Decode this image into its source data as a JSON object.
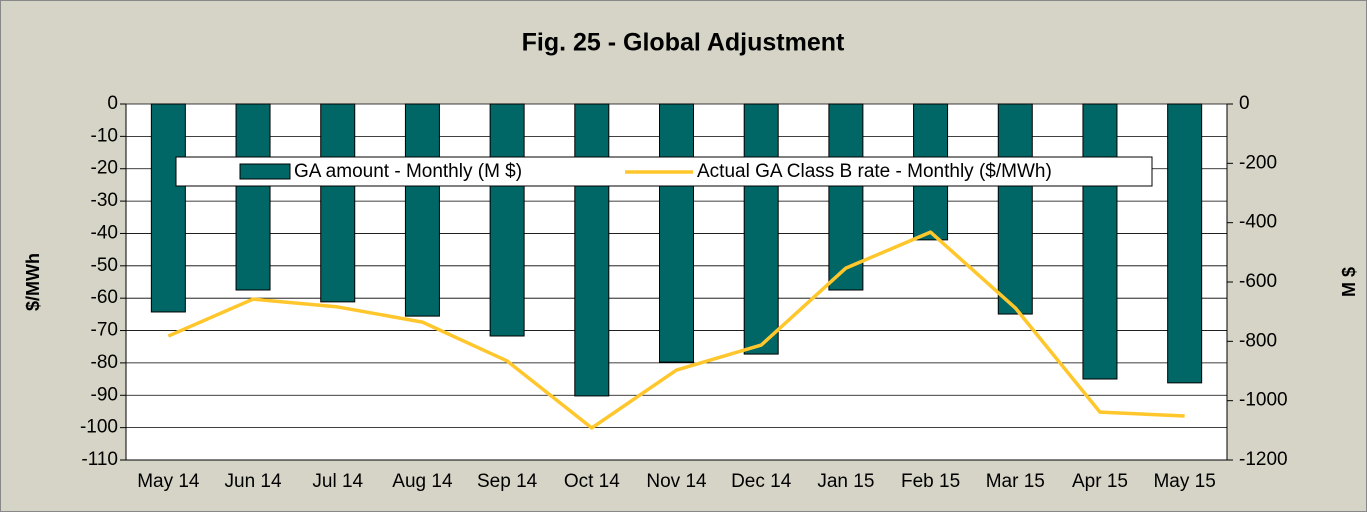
{
  "chart_data": {
    "type": "bar",
    "title": "Fig. 25 - Global Adjustment",
    "ylabel": "$/MWh",
    "y2label": "M $",
    "categories": [
      "May 14",
      "Jun 14",
      "Jul 14",
      "Aug 14",
      "Sep 14",
      "Oct 14",
      "Nov 14",
      "Dec 14",
      "Jan 15",
      "Feb 15",
      "Mar 15",
      "Apr 15",
      "May 15"
    ],
    "series": [
      {
        "name": "GA amount - Monthly (M $)",
        "type": "bar",
        "axis": "y2",
        "color": "#006666",
        "values": [
          -701,
          -627,
          -667,
          -715,
          -782,
          -984,
          -870,
          -843,
          -627,
          -458,
          -708,
          -927,
          -940
        ]
      },
      {
        "name": "Actual GA Class B rate - Monthly ($/MWh)",
        "type": "line",
        "color": "#ffc72c",
        "values": [
          -71.7,
          -60.3,
          -62.7,
          -67.4,
          -79.4,
          -100.1,
          -82.2,
          -74.5,
          -50.7,
          -39.6,
          -63,
          -95.2,
          -96.4
        ]
      }
    ],
    "ylim": [
      -110,
      0
    ],
    "yticks": [
      0,
      -10,
      -20,
      -30,
      -40,
      -50,
      -60,
      -70,
      -80,
      -90,
      -100,
      -110
    ],
    "y2lim": [
      -1200,
      0
    ],
    "y2ticks": [
      0,
      -200,
      -400,
      -600,
      -800,
      -1000,
      -1200
    ],
    "grid": true
  }
}
